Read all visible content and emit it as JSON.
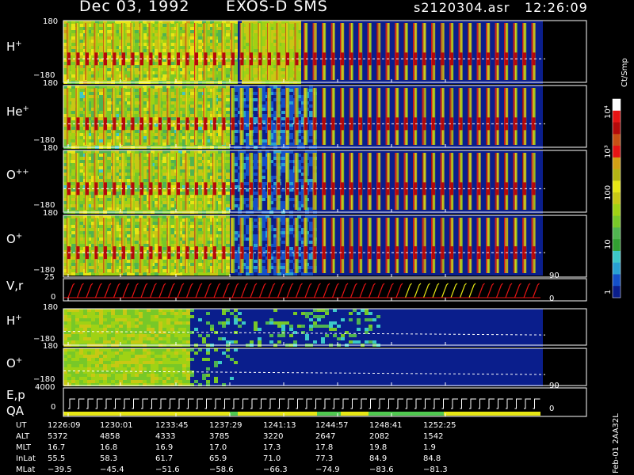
{
  "header": {
    "date": "Dec 03, 1992",
    "instrument": "EXOS-D SMS",
    "file": "s2120304.asr",
    "time": "12:26:09"
  },
  "panels": [
    {
      "id": "h",
      "label": "H",
      "sup": "+",
      "ytop": "180",
      "ybot": "−180"
    },
    {
      "id": "he",
      "label": "He",
      "sup": "+",
      "ytop": "180",
      "ybot": "−180"
    },
    {
      "id": "opp",
      "label": "O",
      "sup": "++",
      "ytop": "180",
      "ybot": "−180"
    },
    {
      "id": "op",
      "label": "O",
      "sup": "+",
      "ytop": "180",
      "ybot": "−180"
    },
    {
      "id": "vr",
      "label": "V,r",
      "sup": "",
      "ytop": "25",
      "ybot": "0",
      "rtop": "90",
      "rbot": "0"
    },
    {
      "id": "h2",
      "label": "H",
      "sup": "+",
      "ytop": "180",
      "ybot": "−180"
    },
    {
      "id": "o2",
      "label": "O",
      "sup": "+",
      "ytop": "180",
      "ybot": "−180",
      "rtop": "90"
    },
    {
      "id": "ep",
      "label": "E,p",
      "label2": "QA",
      "sup": "",
      "ytop": "4000",
      "ybot": "0",
      "rbot": "0"
    }
  ],
  "colorbar": {
    "unit": "Ct/Smp",
    "labels": [
      "10⁴",
      "10³",
      "100",
      "10",
      "1"
    ]
  },
  "footer": {
    "row_labels": [
      "UT",
      "ALT",
      "MLT",
      "InLat",
      "MLat"
    ],
    "columns": [
      [
        "1226:09",
        "5372",
        "16.7",
        "55.5",
        "−39.5"
      ],
      [
        "1230:01",
        "4858",
        "16.8",
        "58.3",
        "−45.4"
      ],
      [
        "1233:45",
        "4333",
        "16.9",
        "61.7",
        "−51.6"
      ],
      [
        "1237:29",
        "3785",
        "17.0",
        "65.9",
        "−58.6"
      ],
      [
        "1241:13",
        "3220",
        "17.3",
        "71.0",
        "−66.3"
      ],
      [
        "1244:57",
        "2647",
        "17.8",
        "77.3",
        "−74.9"
      ],
      [
        "1248:41",
        "2082",
        "19.8",
        "84.9",
        "−83.6"
      ],
      [
        "1252:25",
        "1542",
        "1.9",
        "84.8",
        "−81.3"
      ]
    ],
    "side_label": "Feb-01 2AA32L"
  },
  "colors": {
    "background": "#000000",
    "low": "#0a1e8c",
    "mid": "#3cb43c",
    "high": "#e61414",
    "axis": "#ffffff"
  },
  "chart_data": {
    "type": "heatmap",
    "title": "Dec 03, 1992   EXOS-D SMS",
    "time_ticks": [
      "1226:09",
      "1230:01",
      "1233:45",
      "1237:29",
      "1241:13",
      "1244:57",
      "1248:41",
      "1252:25"
    ],
    "panels": [
      "H+",
      "He+",
      "O++",
      "O+",
      "V,r",
      "H+",
      "O+",
      "E,p QA"
    ],
    "colorbar_unit": "Ct/Smp",
    "colorbar_range": [
      1,
      10000
    ],
    "colorbar_scale": "log"
  }
}
